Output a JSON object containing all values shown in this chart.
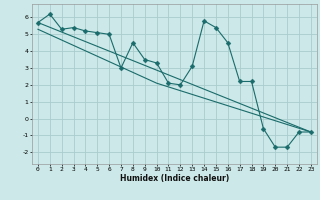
{
  "title": "",
  "xlabel": "Humidex (Indice chaleur)",
  "bg_color": "#cce8e8",
  "grid_color": "#aacccc",
  "line_color": "#1a6b6b",
  "xlim": [
    -0.5,
    23.5
  ],
  "ylim": [
    -2.7,
    6.8
  ],
  "xticks": [
    0,
    1,
    2,
    3,
    4,
    5,
    6,
    7,
    8,
    9,
    10,
    11,
    12,
    13,
    14,
    15,
    16,
    17,
    18,
    19,
    20,
    21,
    22,
    23
  ],
  "yticks": [
    -2,
    -1,
    0,
    1,
    2,
    3,
    4,
    5,
    6
  ],
  "line1_x": [
    0,
    1,
    2,
    3,
    4,
    5,
    6,
    7,
    8,
    9,
    10,
    11,
    12,
    13,
    14,
    15,
    16,
    17,
    18,
    19,
    20,
    21,
    22,
    23
  ],
  "line1_y": [
    5.7,
    6.2,
    5.3,
    5.4,
    5.2,
    5.1,
    5.0,
    3.0,
    4.5,
    3.5,
    3.3,
    2.1,
    2.0,
    3.1,
    5.8,
    5.4,
    4.5,
    2.2,
    2.2,
    -0.6,
    -1.7,
    -1.7,
    -0.8,
    -0.8
  ],
  "line2_x": [
    0,
    23
  ],
  "line2_y": [
    5.7,
    -0.8
  ],
  "line3_x": [
    0,
    10,
    23
  ],
  "line3_y": [
    5.3,
    2.1,
    -0.8
  ],
  "markersize": 2.5
}
